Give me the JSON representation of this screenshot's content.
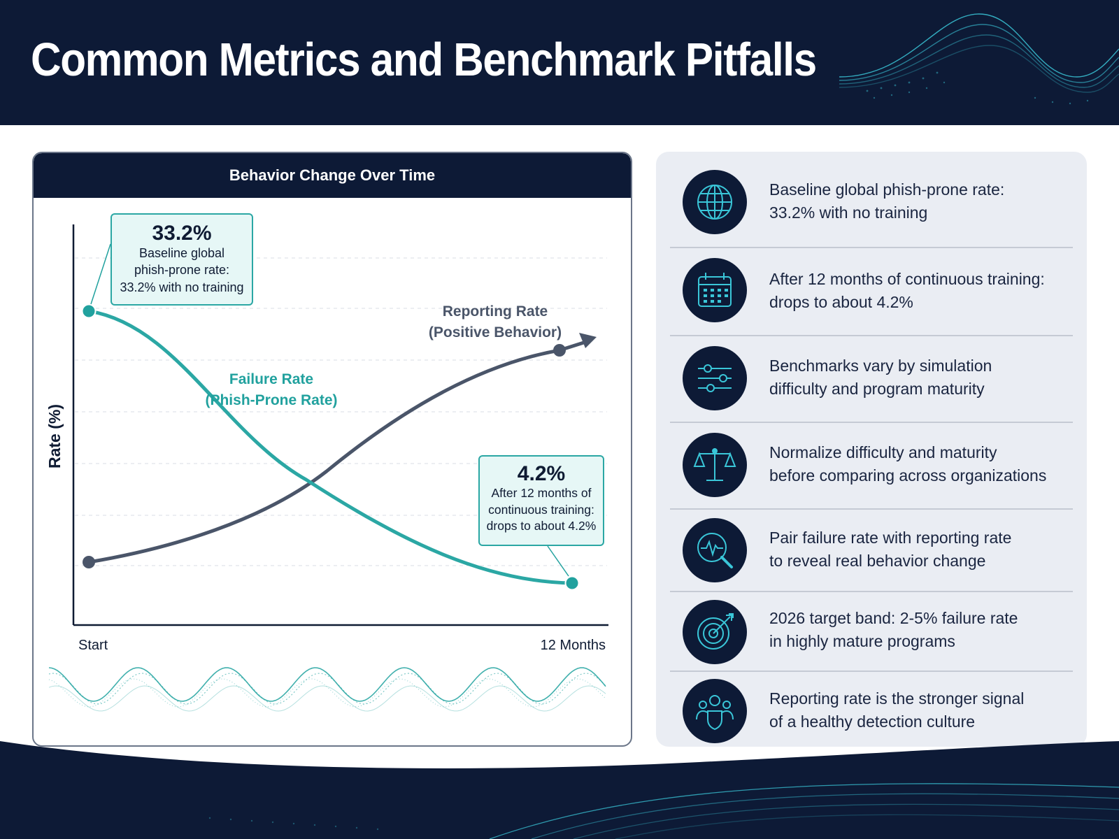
{
  "page": {
    "title": "Common Metrics and Benchmark Pitfalls"
  },
  "colors": {
    "navy": "#0d1a36",
    "teal": "#2ba7a4",
    "slate": "#4a5569",
    "panel": "#eaedf3"
  },
  "chart_data": {
    "type": "line",
    "title": "Behavior Change Over Time",
    "ylabel": "Rate (%)",
    "xlabel": "",
    "x_tick_labels": [
      "Start",
      "12 Months"
    ],
    "x": [
      0,
      12
    ],
    "grid": true,
    "legend": "inline labels",
    "series": [
      {
        "name": "Failure Rate (Phish-Prone Rate)",
        "label_lines": [
          "Failure Rate",
          "(Phish-Prone Rate)"
        ],
        "color": "#2ba7a4",
        "values": [
          33.2,
          4.2
        ],
        "endpoint_markers": true
      },
      {
        "name": "Reporting Rate (Positive Behavior)",
        "label_lines": [
          "Reporting Rate",
          "(Positive Behavior)"
        ],
        "color": "#4a5569",
        "trend": "increasing",
        "arrow": true
      }
    ],
    "annotations": [
      {
        "value_label": "33.2%",
        "text": "Baseline global\nphish-prone rate:\n33.2% with no training"
      },
      {
        "value_label": "4.2%",
        "text": "After 12 months of\ncontinuous training:\ndrops to about 4.2%"
      }
    ]
  },
  "insights": [
    {
      "icon": "globe-icon",
      "text": "Baseline global phish-prone rate:\n33.2% with no training"
    },
    {
      "icon": "calendar-icon",
      "text": "After 12 months of continuous training:\ndrops to about 4.2%"
    },
    {
      "icon": "sliders-icon",
      "text": "Benchmarks vary by simulation\ndifficulty and program maturity"
    },
    {
      "icon": "scales-icon",
      "text": "Normalize difficulty and maturity\nbefore comparing across organizations"
    },
    {
      "icon": "magnifier-pulse-icon",
      "text": "Pair failure rate with reporting rate\nto reveal real behavior change"
    },
    {
      "icon": "target-arrow-icon",
      "text": "2026 target band: 2-5% failure rate\nin highly mature programs"
    },
    {
      "icon": "people-shield-icon",
      "text": "Reporting rate is the stronger signal\nof a healthy detection culture"
    }
  ]
}
